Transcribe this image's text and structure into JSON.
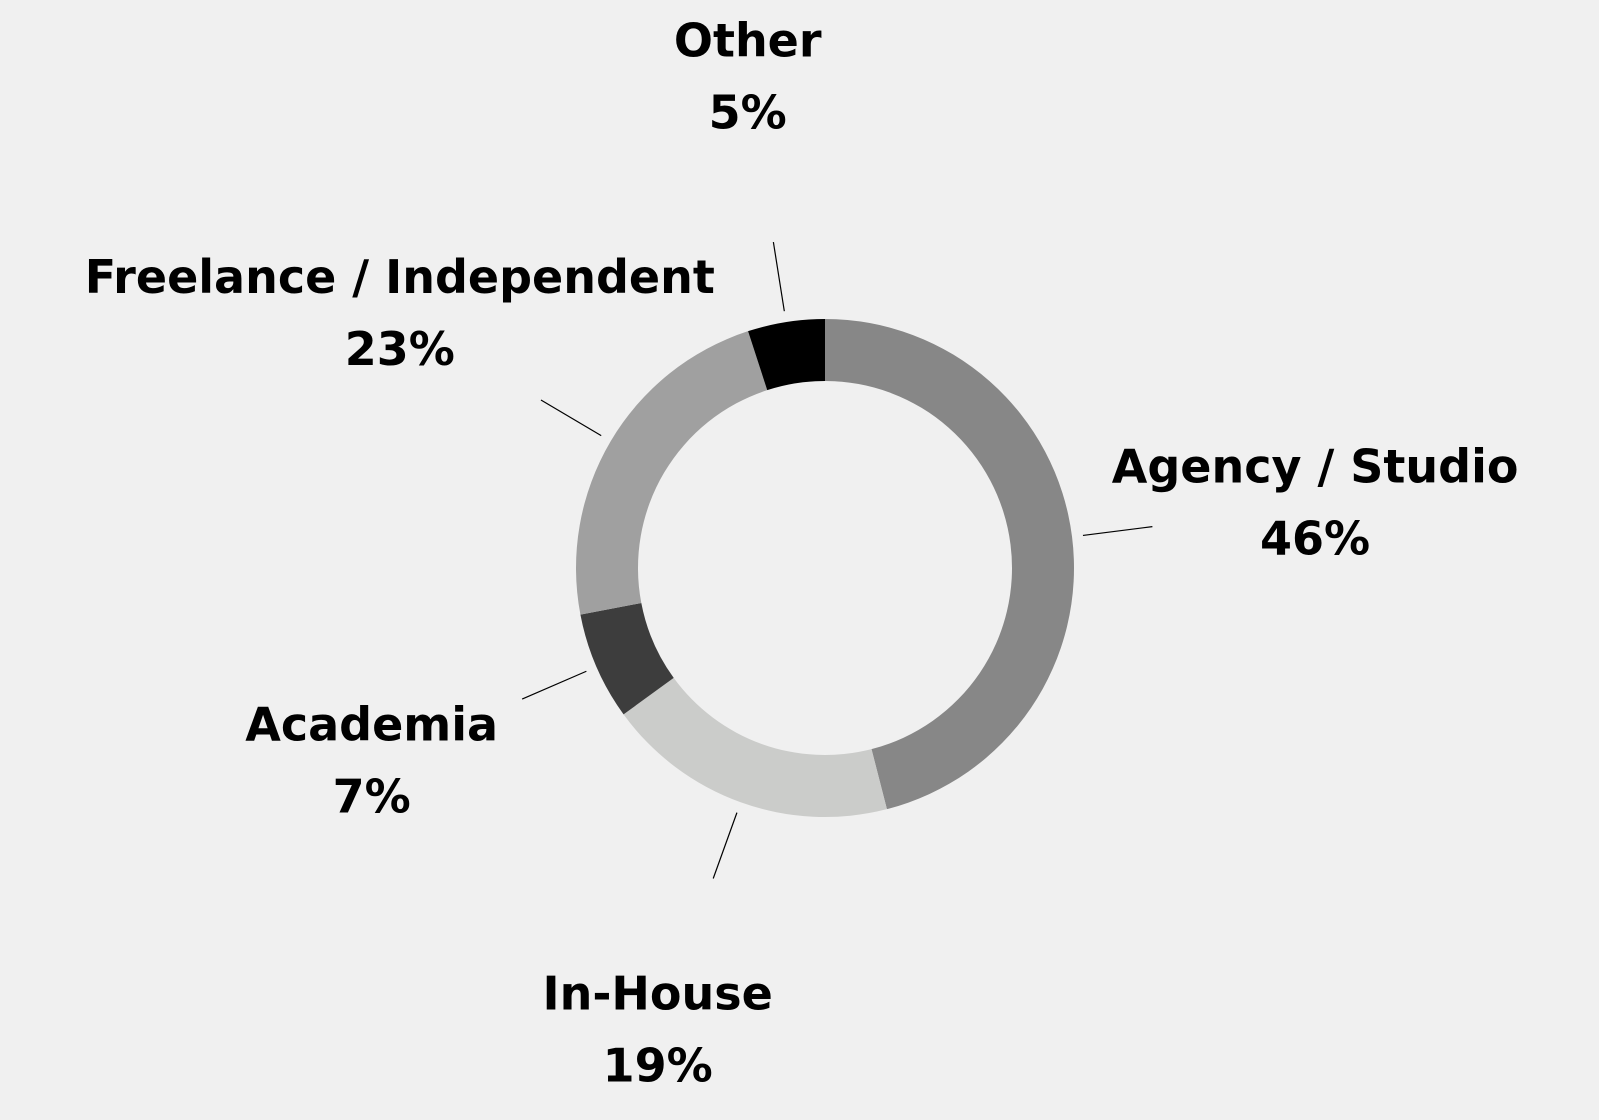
{
  "chart_data": {
    "type": "donut",
    "categories": [
      "Agency / Studio",
      "In-House",
      "Academia",
      "Freelance / Independent",
      "Other"
    ],
    "values": [
      46,
      19,
      7,
      23,
      5
    ],
    "value_labels": [
      "46%",
      "19%",
      "7%",
      "23%",
      "5%"
    ],
    "colors": [
      "#878787",
      "#cbccca",
      "#3d3d3d",
      "#a0a0a0",
      "#000000"
    ]
  }
}
